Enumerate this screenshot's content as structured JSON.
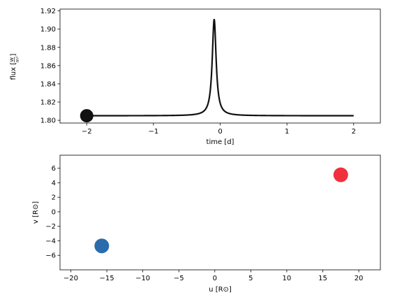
{
  "chart_data": [
    {
      "type": "line",
      "xlabel": "time [d]",
      "ylabel_main": "flux [",
      "ylabel_frac_num": "W",
      "ylabel_frac_den": "m²",
      "ylabel_end": "]",
      "xlim": [
        -2.4,
        2.4
      ],
      "ylim": [
        1.797,
        1.922
      ],
      "x_ticks": [
        -2,
        -1,
        0,
        1,
        2
      ],
      "x_tick_labels": [
        "−2",
        "−1",
        "0",
        "1",
        "2"
      ],
      "y_ticks": [
        1.8,
        1.82,
        1.84,
        1.86,
        1.88,
        1.9,
        1.92
      ],
      "y_tick_labels": [
        "1.80",
        "1.82",
        "1.84",
        "1.86",
        "1.88",
        "1.90",
        "1.92"
      ],
      "series": [
        {
          "color": "#111111",
          "baseline": 1.805,
          "peak_x": -0.09,
          "peak_y": 1.911,
          "peak_halfwidth": 0.035,
          "x_range": [
            -2.0,
            2.0
          ]
        }
      ],
      "marker": {
        "x": -2.0,
        "y": 1.805,
        "color": "#111111"
      }
    },
    {
      "type": "scatter",
      "xlabel": "u [R⊙]",
      "ylabel": "v [R⊙]",
      "xlim": [
        -21.5,
        23.0
      ],
      "ylim": [
        -8.0,
        7.8
      ],
      "x_ticks": [
        -20,
        -15,
        -10,
        -5,
        0,
        5,
        10,
        15,
        20
      ],
      "x_tick_labels": [
        "−20",
        "−15",
        "−10",
        "−5",
        "0",
        "5",
        "10",
        "15",
        "20"
      ],
      "y_ticks": [
        -6,
        -4,
        -2,
        0,
        2,
        4,
        6
      ],
      "y_tick_labels": [
        "−6",
        "−4",
        "−2",
        "0",
        "2",
        "4",
        "6"
      ],
      "points": [
        {
          "x": -15.7,
          "y": -4.7,
          "color": "#2b6cad"
        },
        {
          "x": 17.5,
          "y": 5.1,
          "color": "#f0303c"
        }
      ]
    }
  ]
}
